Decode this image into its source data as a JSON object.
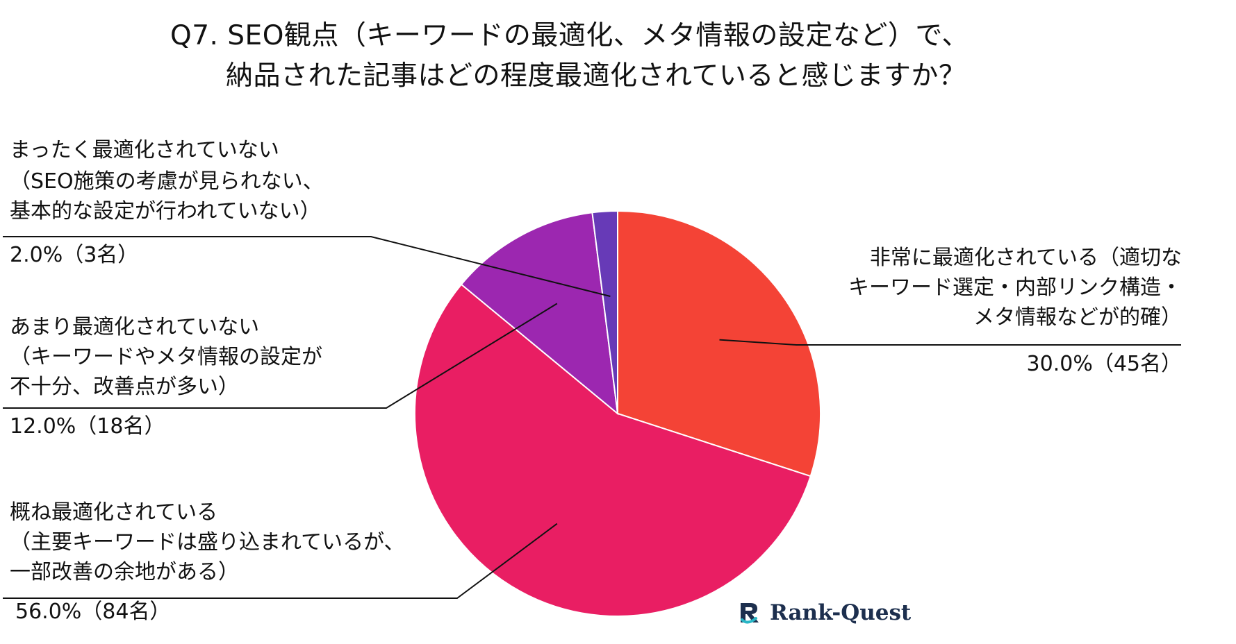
{
  "chart_data": {
    "type": "pie",
    "title_line1": "Q7. SEO観点（キーワードの最適化、メタ情報の設定など）で、",
    "title_line2": "納品された記事はどの程度最適化されていると感じますか？",
    "slices": [
      {
        "line1": "非常に最適化されている（適切な",
        "line2": "キーワード選定・内部リンク構造・",
        "line3": "メタ情報などが的確）",
        "value_text": "30.0%（45名）",
        "percent": 30.0,
        "count": 45,
        "color": "#f44336"
      },
      {
        "line1": "概ね最適化されている",
        "line2": "（主要キーワードは盛り込まれているが、",
        "line3": "一部改善の余地がある）",
        "value_text": "56.0%（84名）",
        "percent": 56.0,
        "count": 84,
        "color": "#e91e63"
      },
      {
        "line1": "あまり最適化されていない",
        "line2": "（キーワードやメタ情報の設定が",
        "line3": "不十分、改善点が多い）",
        "value_text": "12.0%（18名）",
        "percent": 12.0,
        "count": 18,
        "color": "#9c27b0"
      },
      {
        "line1": "まったく最適化されていない",
        "line2": "（SEO施策の考慮が見られない、",
        "line3": "基本的な設定が行われていない）",
        "value_text": "2.0%（3名）",
        "percent": 2.0,
        "count": 3,
        "color": "#673ab7"
      }
    ]
  },
  "logo": {
    "text": "Rank-Quest"
  }
}
